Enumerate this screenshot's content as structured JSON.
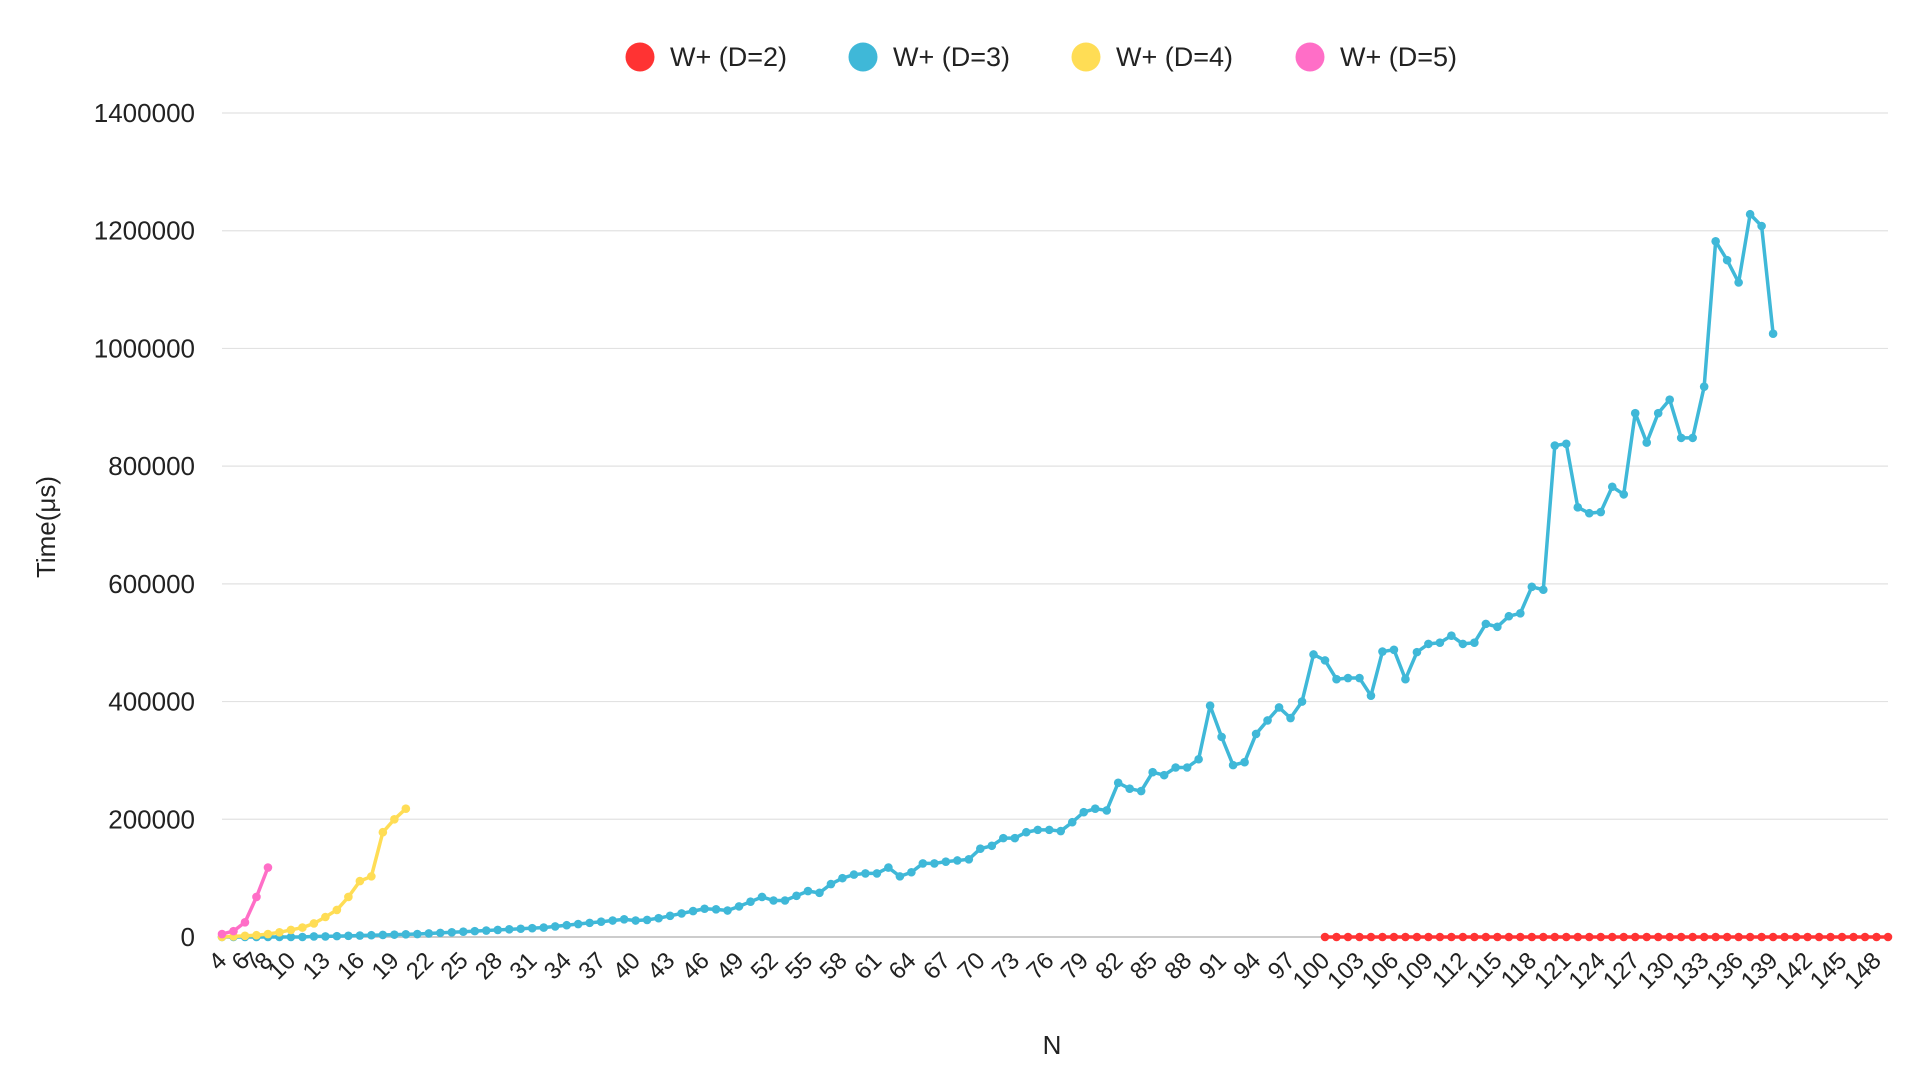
{
  "chart_data": {
    "type": "line",
    "xlabel": "N",
    "ylabel": "Time(μs)",
    "ylim": [
      0,
      1400000
    ],
    "yticks": [
      0,
      200000,
      400000,
      600000,
      800000,
      1000000,
      1200000,
      1400000
    ],
    "xlim": [
      4,
      149
    ],
    "xtick_start": 4,
    "xtick_step": 3,
    "xtick_extra": [
      6,
      8
    ],
    "grid": "horizontal",
    "legend_position": "top-center",
    "series": [
      {
        "name": "W+ (D=2)",
        "color": "#ff3333",
        "x_start": 100,
        "values": [
          0,
          0,
          0,
          0,
          0,
          0,
          0,
          0,
          0,
          0,
          0,
          0,
          0,
          0,
          0,
          0,
          0,
          0,
          0,
          0,
          0,
          0,
          0,
          0,
          0,
          0,
          0,
          0,
          0,
          0,
          0,
          0,
          0,
          0,
          0,
          0,
          0,
          0,
          0,
          0,
          0,
          0,
          0,
          0,
          0,
          0,
          0,
          0,
          0,
          0
        ]
      },
      {
        "name": "W+ (D=3)",
        "color": "#3fb8d8",
        "x_start": 4,
        "values": [
          0,
          0,
          0,
          0,
          0,
          0,
          0,
          0,
          1000,
          1000,
          1500,
          2000,
          2500,
          3000,
          3500,
          4000,
          4500,
          5000,
          6000,
          7000,
          8000,
          9000,
          10000,
          11000,
          12000,
          13000,
          14000,
          15000,
          16000,
          18000,
          20000,
          22000,
          24000,
          26000,
          28000,
          30000,
          28000,
          29000,
          32000,
          36000,
          40000,
          44000,
          48000,
          47000,
          45000,
          52000,
          60000,
          68000,
          62000,
          62000,
          70000,
          78000,
          75000,
          90000,
          100000,
          106000,
          108000,
          108000,
          118000,
          103000,
          110000,
          125000,
          125000,
          128000,
          130000,
          132000,
          150000,
          155000,
          168000,
          168000,
          178000,
          182000,
          182000,
          180000,
          195000,
          212000,
          218000,
          215000,
          262000,
          252000,
          248000,
          280000,
          275000,
          288000,
          288000,
          302000,
          393000,
          340000,
          292000,
          297000,
          345000,
          368000,
          390000,
          372000,
          400000,
          480000,
          470000,
          438000,
          440000,
          440000,
          410000,
          485000,
          488000,
          438000,
          484000,
          498000,
          500000,
          512000,
          498000,
          500000,
          532000,
          527000,
          545000,
          550000,
          595000,
          590000,
          835000,
          838000,
          730000,
          720000,
          722000,
          765000,
          752000,
          890000,
          840000,
          890000,
          913000,
          848000,
          848000,
          935000,
          1182000,
          1150000,
          1112000,
          1228000,
          1208000,
          1025000
        ]
      },
      {
        "name": "W+ (D=4)",
        "color": "#ffdd55",
        "x_start": 4,
        "values": [
          0,
          1000,
          2000,
          3000,
          5000,
          8000,
          12000,
          16000,
          23000,
          34000,
          46000,
          68000,
          95000,
          103000,
          178000,
          200000,
          218000
        ]
      },
      {
        "name": "W+ (D=5)",
        "color": "#ff6ec7",
        "x_start": 4,
        "values": [
          5000,
          10000,
          25000,
          68000,
          118000
        ]
      }
    ]
  }
}
